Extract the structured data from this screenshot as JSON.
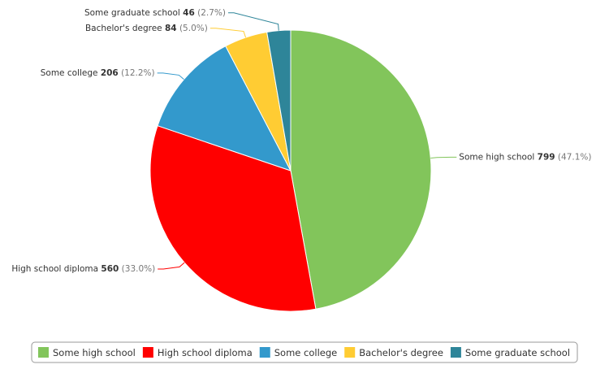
{
  "chart_data": {
    "type": "pie",
    "categories": [
      "Some high school",
      "High school diploma",
      "Some college",
      "Bachelor's degree",
      "Some graduate school"
    ],
    "values": [
      799,
      560,
      206,
      84,
      46
    ],
    "percent_labels": [
      "(47.1%)",
      "(33.0%)",
      "(12.2%)",
      "(5.0%)",
      "(2.7%)"
    ],
    "colors": [
      "#82c55b",
      "#ff0000",
      "#3399cc",
      "#ffcc33",
      "#2e8599"
    ],
    "legend": "bottom"
  }
}
